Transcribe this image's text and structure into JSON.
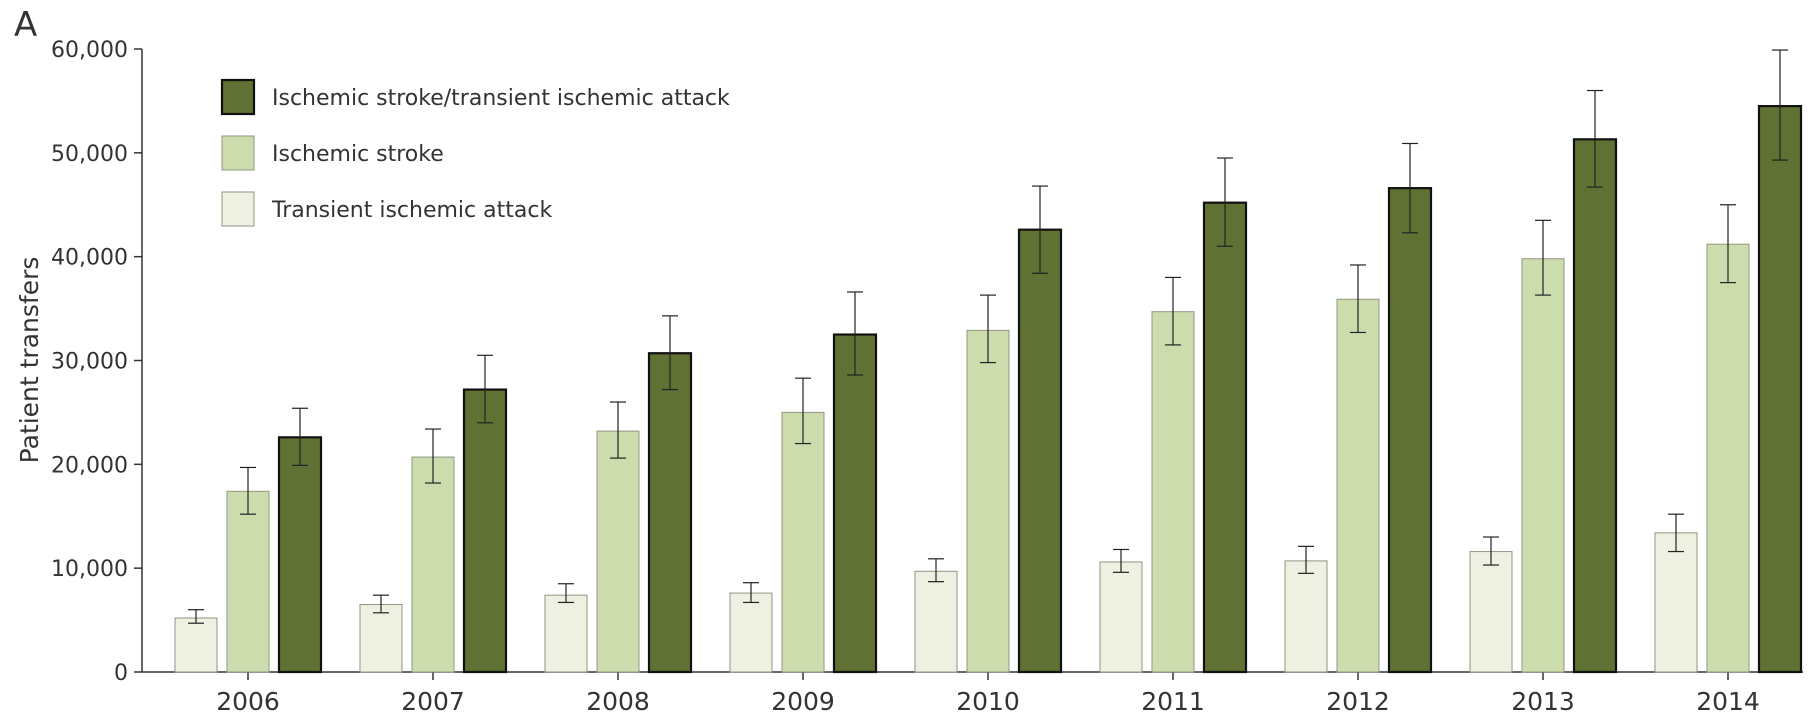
{
  "chart_data": {
    "type": "bar",
    "panel_label": "A",
    "ylabel": "Patient transfers",
    "ylim": [
      0,
      60000
    ],
    "yticks": [
      0,
      10000,
      20000,
      30000,
      40000,
      50000,
      60000
    ],
    "ytick_labels": [
      "0",
      "10,000",
      "20,000",
      "30,000",
      "40,000",
      "50,000",
      "60,000"
    ],
    "categories": [
      "2006",
      "2007",
      "2008",
      "2009",
      "2010",
      "2011",
      "2012",
      "2013",
      "2014"
    ],
    "series": [
      {
        "name": "Transient ischemic attack",
        "color": "#eef0e2",
        "values": [
          5200,
          6500,
          7400,
          7600,
          9700,
          10600,
          10700,
          11600,
          13400
        ],
        "err_low": [
          4700,
          5700,
          6700,
          6700,
          8700,
          9600,
          9500,
          10300,
          11600
        ],
        "err_high": [
          6000,
          7400,
          8500,
          8600,
          10900,
          11800,
          12100,
          13000,
          15200
        ]
      },
      {
        "name": "Ischemic stroke",
        "color": "#cddcac",
        "values": [
          17400,
          20700,
          23200,
          25000,
          32900,
          34700,
          35900,
          39800,
          41200
        ],
        "err_low": [
          15200,
          18200,
          20600,
          22000,
          29800,
          31500,
          32700,
          36300,
          37500
        ],
        "err_high": [
          19700,
          23400,
          26000,
          28300,
          36300,
          38000,
          39200,
          43500,
          45000
        ]
      },
      {
        "name": "Ischemic stroke/transient ischemic attack",
        "color": "#5f7233",
        "values": [
          22600,
          27200,
          30700,
          32500,
          42600,
          45200,
          46600,
          51300,
          54500
        ],
        "err_low": [
          19900,
          24000,
          27200,
          28600,
          38400,
          41000,
          42300,
          46700,
          49300
        ],
        "err_high": [
          25400,
          30500,
          34300,
          36600,
          46800,
          49500,
          50900,
          56000,
          59900
        ]
      }
    ],
    "legend_order": [
      2,
      1,
      0
    ],
    "legend_position": "top-left",
    "grid": false
  }
}
